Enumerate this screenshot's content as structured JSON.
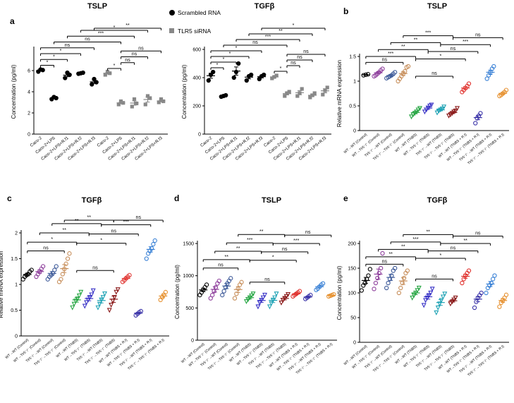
{
  "legend": {
    "items": [
      {
        "label": "Scrambled RNA",
        "color": "#000000",
        "shape": "circle"
      },
      {
        "label": "TLR5 siRNA",
        "color": "#888888",
        "shape": "square"
      }
    ]
  },
  "chart_data": [
    {
      "id": "a1",
      "type": "scatter",
      "panel": "a",
      "title": "TSLP",
      "ylabel": "Concentration (pg/ml)",
      "ylim": [
        0,
        8
      ],
      "yticks": [
        0,
        2,
        4,
        6
      ],
      "categories": [
        "Caco-2",
        "Caco-2+LPS",
        "Caco-2+LPS+R.f1",
        "Caco-2+LPS+R.f2",
        "Caco-2+LPS+R.f3",
        "Caco-2",
        "Caco-2+LPS",
        "Caco-2+LPS+R.f1",
        "Caco-2+LPS+R.f2",
        "Caco-2+LPS+R.f3"
      ],
      "colors": [
        "#000000",
        "#000000",
        "#000000",
        "#000000",
        "#000000",
        "#888888",
        "#888888",
        "#888888",
        "#888888",
        "#888888"
      ],
      "shapes": [
        "circle",
        "circle",
        "circle",
        "circle",
        "circle",
        "square",
        "square",
        "square",
        "square",
        "square"
      ],
      "values": [
        [
          5.9,
          6.1,
          6.05
        ],
        [
          3.3,
          3.5,
          3.4
        ],
        [
          5.3,
          5.8,
          5.6
        ],
        [
          5.7,
          5.75,
          5.8
        ],
        [
          4.7,
          5.2,
          4.9
        ],
        [
          5.6,
          5.9,
          5.75
        ],
        [
          2.8,
          3.1,
          2.95
        ],
        [
          2.6,
          3.3,
          2.9
        ],
        [
          2.8,
          3.6,
          3.4
        ],
        [
          3.0,
          3.3,
          3.1
        ]
      ],
      "sig": [
        {
          "a": 0,
          "b": 1,
          "label": "*",
          "y": 6.5
        },
        {
          "a": 0,
          "b": 2,
          "label": "*",
          "y": 7.05
        },
        {
          "a": 0,
          "b": 3,
          "label": "*",
          "y": 7.6
        },
        {
          "a": 0,
          "b": 4,
          "label": "ns",
          "y": 8.15
        },
        {
          "a": 1,
          "b": 6,
          "label": "ns",
          "y": 8.7
        },
        {
          "a": 2,
          "b": 7,
          "label": "***",
          "y": 9.25
        },
        {
          "a": 3,
          "b": 8,
          "label": "*",
          "y": 9.8
        },
        {
          "a": 4,
          "b": 9,
          "label": "**",
          "y": 10.35
        },
        {
          "a": 5,
          "b": 6,
          "label": "*",
          "y": 6.2
        },
        {
          "a": 6,
          "b": 7,
          "label": "ns",
          "y": 6.75
        },
        {
          "a": 6,
          "b": 8,
          "label": "ns",
          "y": 7.3
        },
        {
          "a": 6,
          "b": 9,
          "label": "ns",
          "y": 7.85
        }
      ]
    },
    {
      "id": "a2",
      "type": "scatter",
      "panel": "a",
      "title": "TGFβ",
      "ylabel": "Concentration (pg/ml)",
      "ylim": [
        0,
        600
      ],
      "yticks": [
        0,
        200,
        400,
        600
      ],
      "categories": [
        "Caco-2",
        "Caco-2+LPS",
        "Caco-2+LPS+R.f1",
        "Caco-2+LPS+R.f2",
        "Caco-2+LPS+R.f3",
        "Caco-2",
        "Caco-2+LPS",
        "Caco-2+LPS+R.f1",
        "Caco-2+LPS+R.f2",
        "Caco-2+LPS+R.f3"
      ],
      "colors": [
        "#000000",
        "#000000",
        "#000000",
        "#000000",
        "#000000",
        "#888888",
        "#888888",
        "#888888",
        "#888888",
        "#888888"
      ],
      "shapes": [
        "circle",
        "circle",
        "circle",
        "circle",
        "circle",
        "square",
        "square",
        "square",
        "square",
        "square"
      ],
      "values": [
        [
          380,
          420,
          440
        ],
        [
          265,
          270,
          275
        ],
        [
          400,
          440,
          500
        ],
        [
          380,
          410,
          420
        ],
        [
          390,
          410,
          420
        ],
        [
          395,
          405,
          415
        ],
        [
          270,
          290,
          300
        ],
        [
          270,
          290,
          320
        ],
        [
          260,
          275,
          290
        ],
        [
          280,
          310,
          330
        ]
      ],
      "sig": [
        {
          "a": 0,
          "b": 1,
          "label": "*",
          "y": 470
        },
        {
          "a": 0,
          "b": 2,
          "label": "*",
          "y": 510
        },
        {
          "a": 0,
          "b": 3,
          "label": "*",
          "y": 550
        },
        {
          "a": 0,
          "b": 4,
          "label": "*",
          "y": 590
        },
        {
          "a": 1,
          "b": 6,
          "label": "ns",
          "y": 630
        },
        {
          "a": 2,
          "b": 7,
          "label": "***",
          "y": 670
        },
        {
          "a": 3,
          "b": 8,
          "label": "**",
          "y": 710
        },
        {
          "a": 4,
          "b": 9,
          "label": "*",
          "y": 750
        },
        {
          "a": 5,
          "b": 6,
          "label": "*",
          "y": 445
        },
        {
          "a": 6,
          "b": 7,
          "label": "ns",
          "y": 485
        },
        {
          "a": 6,
          "b": 8,
          "label": "ns",
          "y": 525
        },
        {
          "a": 6,
          "b": 9,
          "label": "ns",
          "y": 565
        }
      ]
    },
    {
      "id": "b",
      "type": "scatter",
      "panel": "b",
      "title": "TSLP",
      "ylabel": "Relative mRNA expression",
      "ylim": [
        0,
        1.5
      ],
      "yticks": [
        0,
        0.5,
        1.0,
        1.5
      ],
      "categories": [
        "WT→WT (Control)",
        "WT→Tlr5⁻/⁻ (Control)",
        "Tlr5⁻/⁻→WT (Control)",
        "Tlr5⁻/⁻→Tlr5⁻/⁻ (Control)",
        "WT→WT (TNBS)",
        "WT→Tlr5⁻/⁻ (TNBS)",
        "Tlr5⁻/⁻→WT (TNBS)",
        "Tlr5⁻/⁻→Tlr5⁻/⁻ (TNBS)",
        "WT→WT (TNBS + R.I)",
        "WT→Tlr5⁻/⁻ (TNBS + R.I)",
        "Tlr5⁻/⁻→WT (TNBS + R.I)",
        "Tlr5⁻/⁻→Tlr5⁻/⁻ (TNBS + R.I)"
      ],
      "colors": [
        "#000000",
        "#8e3f9c",
        "#3d5a99",
        "#c78e5a",
        "#28a745",
        "#3b35c7",
        "#20a3b5",
        "#8b1a1a",
        "#e0322e",
        "#3a33a8",
        "#3b82d6",
        "#e6902e"
      ],
      "shapes": [
        "circle",
        "circle",
        "circle",
        "circle",
        "triangle",
        "triangle",
        "triangle",
        "triangle",
        "circle",
        "circle",
        "circle",
        "circle"
      ],
      "values": [
        [
          1.12,
          1.13,
          1.14
        ],
        [
          1.1,
          1.12,
          1.15,
          1.18,
          1.22,
          1.25
        ],
        [
          1.06,
          1.08,
          1.1,
          1.12,
          1.15,
          1.18
        ],
        [
          1.0,
          1.05,
          1.1,
          1.15,
          1.2,
          1.28,
          1.3
        ],
        [
          0.28,
          0.32,
          0.35,
          0.38,
          0.42,
          0.45
        ],
        [
          0.38,
          0.42,
          0.46,
          0.5,
          0.52
        ],
        [
          0.36,
          0.4,
          0.42,
          0.44,
          0.48
        ],
        [
          0.3,
          0.32,
          0.35,
          0.38,
          0.4,
          0.45
        ],
        [
          0.78,
          0.82,
          0.86,
          0.9,
          0.95
        ],
        [
          0.15,
          0.25,
          0.3,
          0.35
        ],
        [
          1.05,
          1.12,
          1.18,
          1.25,
          1.3
        ],
        [
          0.7,
          0.72,
          0.75,
          0.78,
          0.82
        ]
      ],
      "sig": [
        {
          "a": 0,
          "b": 3,
          "label": "ns",
          "y": 1.38
        },
        {
          "a": 0,
          "b": 4,
          "label": "***",
          "y": 1.5
        },
        {
          "a": 1,
          "b": 5,
          "label": "**",
          "y": 1.64
        },
        {
          "a": 2,
          "b": 6,
          "label": "**",
          "y": 1.78
        },
        {
          "a": 3,
          "b": 7,
          "label": "***",
          "y": 1.92
        },
        {
          "a": 4,
          "b": 7,
          "label": "ns",
          "y": 1.1
        },
        {
          "a": 4,
          "b": 8,
          "label": "*",
          "y": 1.45
        },
        {
          "a": 5,
          "b": 9,
          "label": "ns",
          "y": 1.6
        },
        {
          "a": 6,
          "b": 10,
          "label": "***",
          "y": 1.74
        },
        {
          "a": 7,
          "b": 11,
          "label": "ns",
          "y": 1.88
        }
      ]
    },
    {
      "id": "c",
      "type": "scatter",
      "panel": "c",
      "title": "TGFβ",
      "ylabel": "Relative mRNA expression",
      "ylim": [
        0,
        2.0
      ],
      "yticks": [
        0,
        0.5,
        1.0,
        1.5,
        2.0
      ],
      "categories": [
        "WT→WT (Control)",
        "WT→Tlr5⁻/⁻ (Control)",
        "Tlr5⁻/⁻→WT (Control)",
        "Tlr5⁻/⁻→Tlr5⁻/⁻ (Control)",
        "WT→WT (TNBS)",
        "WT→Tlr5⁻/⁻ (TNBS)",
        "Tlr5⁻/⁻→WT (TNBS)",
        "Tlr5⁻/⁻→Tlr5⁻/⁻ (TNBS)",
        "WT→WT (TNBS + R.I)",
        "WT→Tlr5⁻/⁻ (TNBS + R.I)",
        "Tlr5⁻/⁻→WT (TNBS + R.I)",
        "Tlr5⁻/⁻→Tlr5⁻/⁻ (TNBS + R.I)"
      ],
      "colors": [
        "#000000",
        "#8e3f9c",
        "#3d5a99",
        "#c78e5a",
        "#28a745",
        "#3b35c7",
        "#20a3b5",
        "#8b1a1a",
        "#e0322e",
        "#3a33a8",
        "#3b82d6",
        "#e6902e"
      ],
      "shapes": [
        "circle",
        "circle",
        "circle",
        "circle",
        "triangle",
        "triangle",
        "triangle",
        "triangle",
        "circle",
        "circle",
        "circle",
        "circle"
      ],
      "values": [
        [
          1.1,
          1.15,
          1.18,
          1.2,
          1.25,
          1.28
        ],
        [
          1.15,
          1.2,
          1.25,
          1.3,
          1.35
        ],
        [
          1.1,
          1.15,
          1.18,
          1.22,
          1.28,
          1.35
        ],
        [
          1.05,
          1.1,
          1.2,
          1.3,
          1.4,
          1.5,
          1.6
        ],
        [
          0.55,
          0.62,
          0.68,
          0.72,
          0.78,
          0.85
        ],
        [
          0.58,
          0.65,
          0.7,
          0.75,
          0.8,
          0.88
        ],
        [
          0.55,
          0.62,
          0.7,
          0.75,
          0.82
        ],
        [
          0.5,
          0.6,
          0.68,
          0.75,
          0.85,
          0.9
        ],
        [
          1.05,
          1.08,
          1.12,
          1.15,
          1.18
        ],
        [
          0.4,
          0.43,
          0.46,
          0.48
        ],
        [
          1.5,
          1.6,
          1.65,
          1.7,
          1.78,
          1.85
        ],
        [
          0.7,
          0.75,
          0.8,
          0.85
        ]
      ],
      "sig": [
        {
          "a": 0,
          "b": 3,
          "label": "ns",
          "y": 1.65
        },
        {
          "a": 0,
          "b": 4,
          "label": "*",
          "y": 1.82
        },
        {
          "a": 1,
          "b": 5,
          "label": "**",
          "y": 2.0
        },
        {
          "a": 2,
          "b": 6,
          "label": "**",
          "y": 2.18
        },
        {
          "a": 3,
          "b": 7,
          "label": "**",
          "y": 2.36
        },
        {
          "a": 4,
          "b": 7,
          "label": "ns",
          "y": 1.27
        },
        {
          "a": 4,
          "b": 8,
          "label": "*",
          "y": 1.8
        },
        {
          "a": 5,
          "b": 9,
          "label": "ns",
          "y": 1.98
        },
        {
          "a": 6,
          "b": 10,
          "label": "***",
          "y": 2.16
        },
        {
          "a": 7,
          "b": 11,
          "label": "ns",
          "y": 2.34
        }
      ]
    },
    {
      "id": "d",
      "type": "scatter",
      "panel": "d",
      "title": "TSLP",
      "ylabel": "Concentration (pg/ml)",
      "ylim": [
        0,
        1500
      ],
      "yticks": [
        0,
        500,
        1000,
        1500
      ],
      "categories": [
        "WT→WT (Control)",
        "WT→Tlr5⁻/⁻ (Control)",
        "Tlr5⁻/⁻→WT (Control)",
        "Tlr5⁻/⁻→Tlr5⁻/⁻ (Control)",
        "WT→WT (TNBS)",
        "WT→Tlr5⁻/⁻ (TNBS)",
        "Tlr5⁻/⁻→WT (TNBS)",
        "Tlr5⁻/⁻→Tlr5⁻/⁻ (TNBS)",
        "WT→WT (TNBS + R.I)",
        "WT→Tlr5⁻/⁻ (TNBS + R.I)",
        "Tlr5⁻/⁻→WT (TNBS + R.I)",
        "Tlr5⁻/⁻→Tlr5⁻/⁻ (TNBS + R.I)"
      ],
      "colors": [
        "#000000",
        "#8e3f9c",
        "#3d5a99",
        "#c78e5a",
        "#28a745",
        "#3b35c7",
        "#20a3b5",
        "#8b1a1a",
        "#e0322e",
        "#3a33a8",
        "#3b82d6",
        "#e6902e"
      ],
      "shapes": [
        "circle",
        "circle",
        "circle",
        "circle",
        "triangle",
        "triangle",
        "triangle",
        "triangle",
        "circle",
        "circle",
        "circle",
        "circle"
      ],
      "values": [
        [
          700,
          740,
          780,
          820,
          860
        ],
        [
          650,
          700,
          760,
          820,
          880,
          920
        ],
        [
          700,
          760,
          820,
          880,
          920,
          960
        ],
        [
          650,
          720,
          800,
          860,
          900
        ],
        [
          600,
          630,
          660,
          690,
          720
        ],
        [
          520,
          580,
          620,
          660,
          700
        ],
        [
          520,
          570,
          620,
          660,
          720
        ],
        [
          580,
          620,
          650,
          680,
          710
        ],
        [
          680,
          700,
          720,
          740,
          760
        ],
        [
          640,
          660,
          680,
          700
        ],
        [
          780,
          800,
          830,
          860,
          880
        ],
        [
          680,
          690,
          700,
          710
        ]
      ],
      "sig": [
        {
          "a": 0,
          "b": 3,
          "label": "ns",
          "y": 1120
        },
        {
          "a": 0,
          "b": 4,
          "label": "**",
          "y": 1250
        },
        {
          "a": 1,
          "b": 5,
          "label": "**",
          "y": 1380
        },
        {
          "a": 2,
          "b": 6,
          "label": "***",
          "y": 1510
        },
        {
          "a": 3,
          "b": 7,
          "label": "**",
          "y": 1640
        },
        {
          "a": 4,
          "b": 7,
          "label": "ns",
          "y": 900
        },
        {
          "a": 4,
          "b": 8,
          "label": "*",
          "y": 1240
        },
        {
          "a": 5,
          "b": 9,
          "label": "ns",
          "y": 1370
        },
        {
          "a": 6,
          "b": 10,
          "label": "***",
          "y": 1500
        },
        {
          "a": 7,
          "b": 11,
          "label": "ns",
          "y": 1630
        }
      ]
    },
    {
      "id": "e",
      "type": "scatter",
      "panel": "e",
      "title": "TGFβ",
      "ylabel": "Concentration (pg/ml)",
      "ylim": [
        0,
        200
      ],
      "yticks": [
        0,
        50,
        100,
        150,
        200
      ],
      "categories": [
        "WT→WT (Control)",
        "WT→Tlr5⁻/⁻ (Control)",
        "Tlr5⁻/⁻→WT (Control)",
        "Tlr5⁻/⁻→Tlr5⁻/⁻ (Control)",
        "WT→WT (TNBS)",
        "WT→Tlr5⁻/⁻ (TNBS)",
        "Tlr5⁻/⁻→WT (TNBS)",
        "Tlr5⁻/⁻→Tlr5⁻/⁻ (TNBS)",
        "WT→WT (TNBS + R.I)",
        "WT→Tlr5⁻/⁻ (TNBS + R.I)",
        "Tlr5⁻/⁻→WT (TNBS + R.I)",
        "Tlr5⁻/⁻→Tlr5⁻/⁻ (TNBS + R.I)"
      ],
      "colors": [
        "#000000",
        "#8e3f9c",
        "#3d5a99",
        "#c78e5a",
        "#28a745",
        "#3b35c7",
        "#20a3b5",
        "#8b1a1a",
        "#e0322e",
        "#3a33a8",
        "#3b82d6",
        "#e6902e"
      ],
      "shapes": [
        "circle",
        "circle",
        "circle",
        "circle",
        "triangle",
        "triangle",
        "triangle",
        "triangle",
        "circle",
        "circle",
        "circle",
        "circle"
      ],
      "values": [
        [
          105,
          115,
          120,
          128,
          135,
          148
        ],
        [
          108,
          120,
          130,
          140,
          150,
          180
        ],
        [
          110,
          120,
          128,
          135,
          145,
          150
        ],
        [
          100,
          110,
          120,
          130,
          140,
          145
        ],
        [
          90,
          95,
          100,
          105,
          110
        ],
        [
          75,
          85,
          90,
          95,
          100,
          108
        ],
        [
          60,
          70,
          78,
          85,
          92,
          98
        ],
        [
          78,
          82,
          86,
          90
        ],
        [
          120,
          128,
          135,
          140,
          145
        ],
        [
          70,
          82,
          90,
          95,
          100
        ],
        [
          100,
          110,
          115,
          120,
          128,
          135
        ],
        [
          72,
          80,
          85,
          90,
          96
        ]
      ],
      "sig": [
        {
          "a": 0,
          "b": 3,
          "label": "ns",
          "y": 158
        },
        {
          "a": 0,
          "b": 4,
          "label": "**",
          "y": 173
        },
        {
          "a": 1,
          "b": 5,
          "label": "**",
          "y": 188
        },
        {
          "a": 2,
          "b": 6,
          "label": "***",
          "y": 203
        },
        {
          "a": 3,
          "b": 7,
          "label": "**",
          "y": 218
        },
        {
          "a": 4,
          "b": 7,
          "label": "ns",
          "y": 128
        },
        {
          "a": 4,
          "b": 8,
          "label": "*",
          "y": 170
        },
        {
          "a": 5,
          "b": 9,
          "label": "ns",
          "y": 185
        },
        {
          "a": 6,
          "b": 10,
          "label": "**",
          "y": 200
        },
        {
          "a": 7,
          "b": 11,
          "label": "ns",
          "y": 215
        }
      ]
    }
  ]
}
